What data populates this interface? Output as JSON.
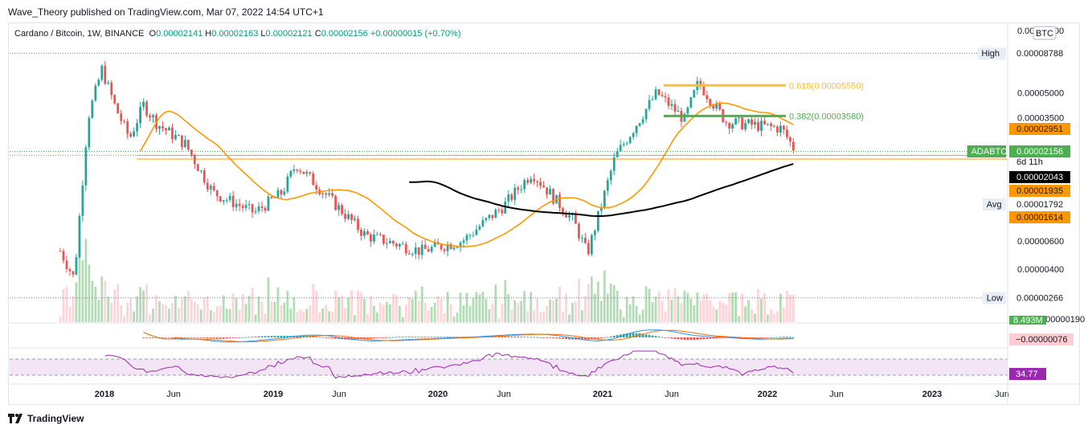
{
  "header": {
    "credit": "Wave_Theory published on TradingView.com, Mar 07, 2022 14:54 UTC+1"
  },
  "legend": {
    "symbol": "Cardano / Bitcoin, 1W, BINANCE",
    "o_label": "O",
    "o": "0.00002141",
    "h_label": "H",
    "h": "0.00002163",
    "l_label": "L",
    "l": "0.00002121",
    "c_label": "C",
    "c": "0.00002156",
    "change": "+0.00000015 (+0.70%)"
  },
  "footer": {
    "brand": "TradingView"
  },
  "colors": {
    "up": "#26a69a",
    "down": "#ef5350",
    "ma": "#ff9800",
    "ma_long": "#000000",
    "fib": "#4caf50",
    "fib618": "#fbc02d",
    "rsi": "#9c27b0",
    "rsi_band": "#f3e5f5",
    "vol_up": "#a5d6a7",
    "macd_fast": "#2196f3",
    "macd_slow": "#ff6d00"
  },
  "chart_data": {
    "type": "candlestick",
    "title": "Cardano / Bitcoin, 1W, BINANCE",
    "currency": "BTC",
    "y_scale": "log",
    "ylim": [
      1.9e-06,
      0.0001
    ],
    "x_ticks": [
      "2018",
      "Jun",
      "2019",
      "Jun",
      "2020",
      "Jun",
      "2021",
      "Jun",
      "2022",
      "Jun",
      "2023",
      "Jun"
    ],
    "y_ticks": [
      "0.00000190",
      "0.00000266",
      "0.00000400",
      "0.00000600",
      "0.00001614",
      "0.00001792",
      "0.00001935",
      "0.00002043",
      "0.00002156",
      "0.00002951",
      "0.00003500",
      "0.00005000",
      "0.00008788",
      "0.00010000"
    ],
    "price_labels": [
      {
        "name": "high",
        "title": "High",
        "value": "0.00008788"
      },
      {
        "name": "ma-fast",
        "value": "0.00002951"
      },
      {
        "name": "last",
        "title": "ADABTC",
        "value": "0.00002156",
        "sub": "6d 11h"
      },
      {
        "name": "ma-long",
        "value": "0.00002043"
      },
      {
        "name": "support",
        "value": "0.00001935"
      },
      {
        "name": "avg",
        "title": "Avg",
        "value": "0.00001792"
      },
      {
        "name": "ma-third",
        "value": "0.00001614"
      },
      {
        "name": "low",
        "title": "Low",
        "value": "0.00000266"
      }
    ],
    "fib_levels": [
      {
        "ratio": "0.618",
        "value": "0.00005550",
        "label": "0.618(0.00005550)"
      },
      {
        "ratio": "0.382",
        "value": "0.00003580",
        "label": "0.382(0.00003580)"
      }
    ],
    "volume_label": "8.493M",
    "macd_label": "−0.00000076",
    "rsi_label": "34.77",
    "close_path_approx": [
      [
        "2017-10",
        5.2e-06
      ],
      [
        "2017-11",
        3.5e-06
      ],
      [
        "2017-12",
        3.5e-05
      ],
      [
        "2018-01",
        7e-05
      ],
      [
        "2018-02",
        4e-05
      ],
      [
        "2018-03",
        2.6e-05
      ],
      [
        "2018-04",
        4.2e-05
      ],
      [
        "2018-05",
        3.2e-05
      ],
      [
        "2018-07",
        2.4e-05
      ],
      [
        "2018-09",
        1.2e-05
      ],
      [
        "2018-12",
        9e-06
      ],
      [
        "2019-02",
        1.2e-05
      ],
      [
        "2019-03",
        1.8e-05
      ],
      [
        "2019-05",
        1.2e-05
      ],
      [
        "2019-08",
        6.5e-06
      ],
      [
        "2019-12",
        5.2e-06
      ],
      [
        "2020-03",
        6e-06
      ],
      [
        "2020-06",
        1e-05
      ],
      [
        "2020-08",
        1.6e-05
      ],
      [
        "2020-11",
        8e-06
      ],
      [
        "2020-12",
        5e-06
      ],
      [
        "2021-02",
        2e-05
      ],
      [
        "2021-05",
        5e-05
      ],
      [
        "2021-07",
        3.4e-05
      ],
      [
        "2021-08",
        5.8e-05
      ],
      [
        "2021-10",
        3.3e-05
      ],
      [
        "2022-02",
        3e-05
      ],
      [
        "2022-03",
        2.156e-05
      ]
    ]
  }
}
